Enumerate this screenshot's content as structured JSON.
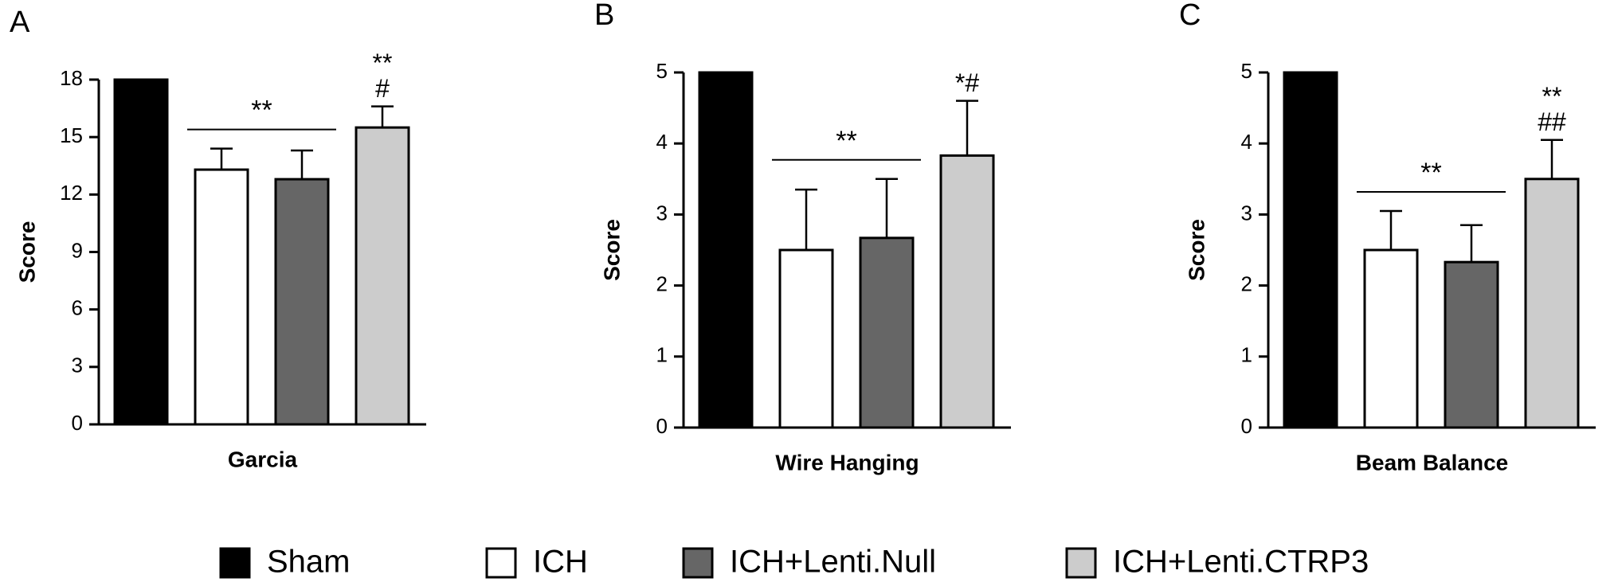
{
  "chart_data": [
    {
      "type": "bar",
      "panel": "A",
      "xlabel": "Garcia",
      "ylabel": "Score",
      "values": [
        18,
        13.3,
        12.8,
        15.5
      ],
      "errors": [
        null,
        1.1,
        1.5,
        1.1
      ],
      "ylim": [
        0,
        18
      ],
      "yticks": [
        0,
        3,
        6,
        9,
        12,
        15,
        18
      ],
      "bracket_label": "**",
      "top_labels": [
        "**",
        "#"
      ]
    },
    {
      "type": "bar",
      "panel": "B",
      "xlabel": "Wire Hanging",
      "ylabel": "Score",
      "values": [
        5,
        2.5,
        2.67,
        3.83
      ],
      "errors": [
        null,
        0.85,
        0.83,
        0.77
      ],
      "ylim": [
        0,
        5
      ],
      "yticks": [
        0,
        1,
        2,
        3,
        4,
        5
      ],
      "bracket_label": "**",
      "top_labels": [
        "*#"
      ]
    },
    {
      "type": "bar",
      "panel": "C",
      "xlabel": "Beam Balance",
      "ylabel": "Score",
      "values": [
        5,
        2.5,
        2.33,
        3.5
      ],
      "errors": [
        null,
        0.55,
        0.52,
        0.55
      ],
      "ylim": [
        0,
        5
      ],
      "yticks": [
        0,
        1,
        2,
        3,
        4,
        5
      ],
      "bracket_label": "**",
      "top_labels": [
        "**",
        "##"
      ]
    }
  ],
  "legend": [
    {
      "name": "Sham",
      "color": "#000000"
    },
    {
      "name": "ICH",
      "color": "#ffffff"
    },
    {
      "name": "ICH+Lenti.Null",
      "color": "#666666"
    },
    {
      "name": "ICH+Lenti.CTRP3",
      "color": "#cccccc"
    }
  ]
}
